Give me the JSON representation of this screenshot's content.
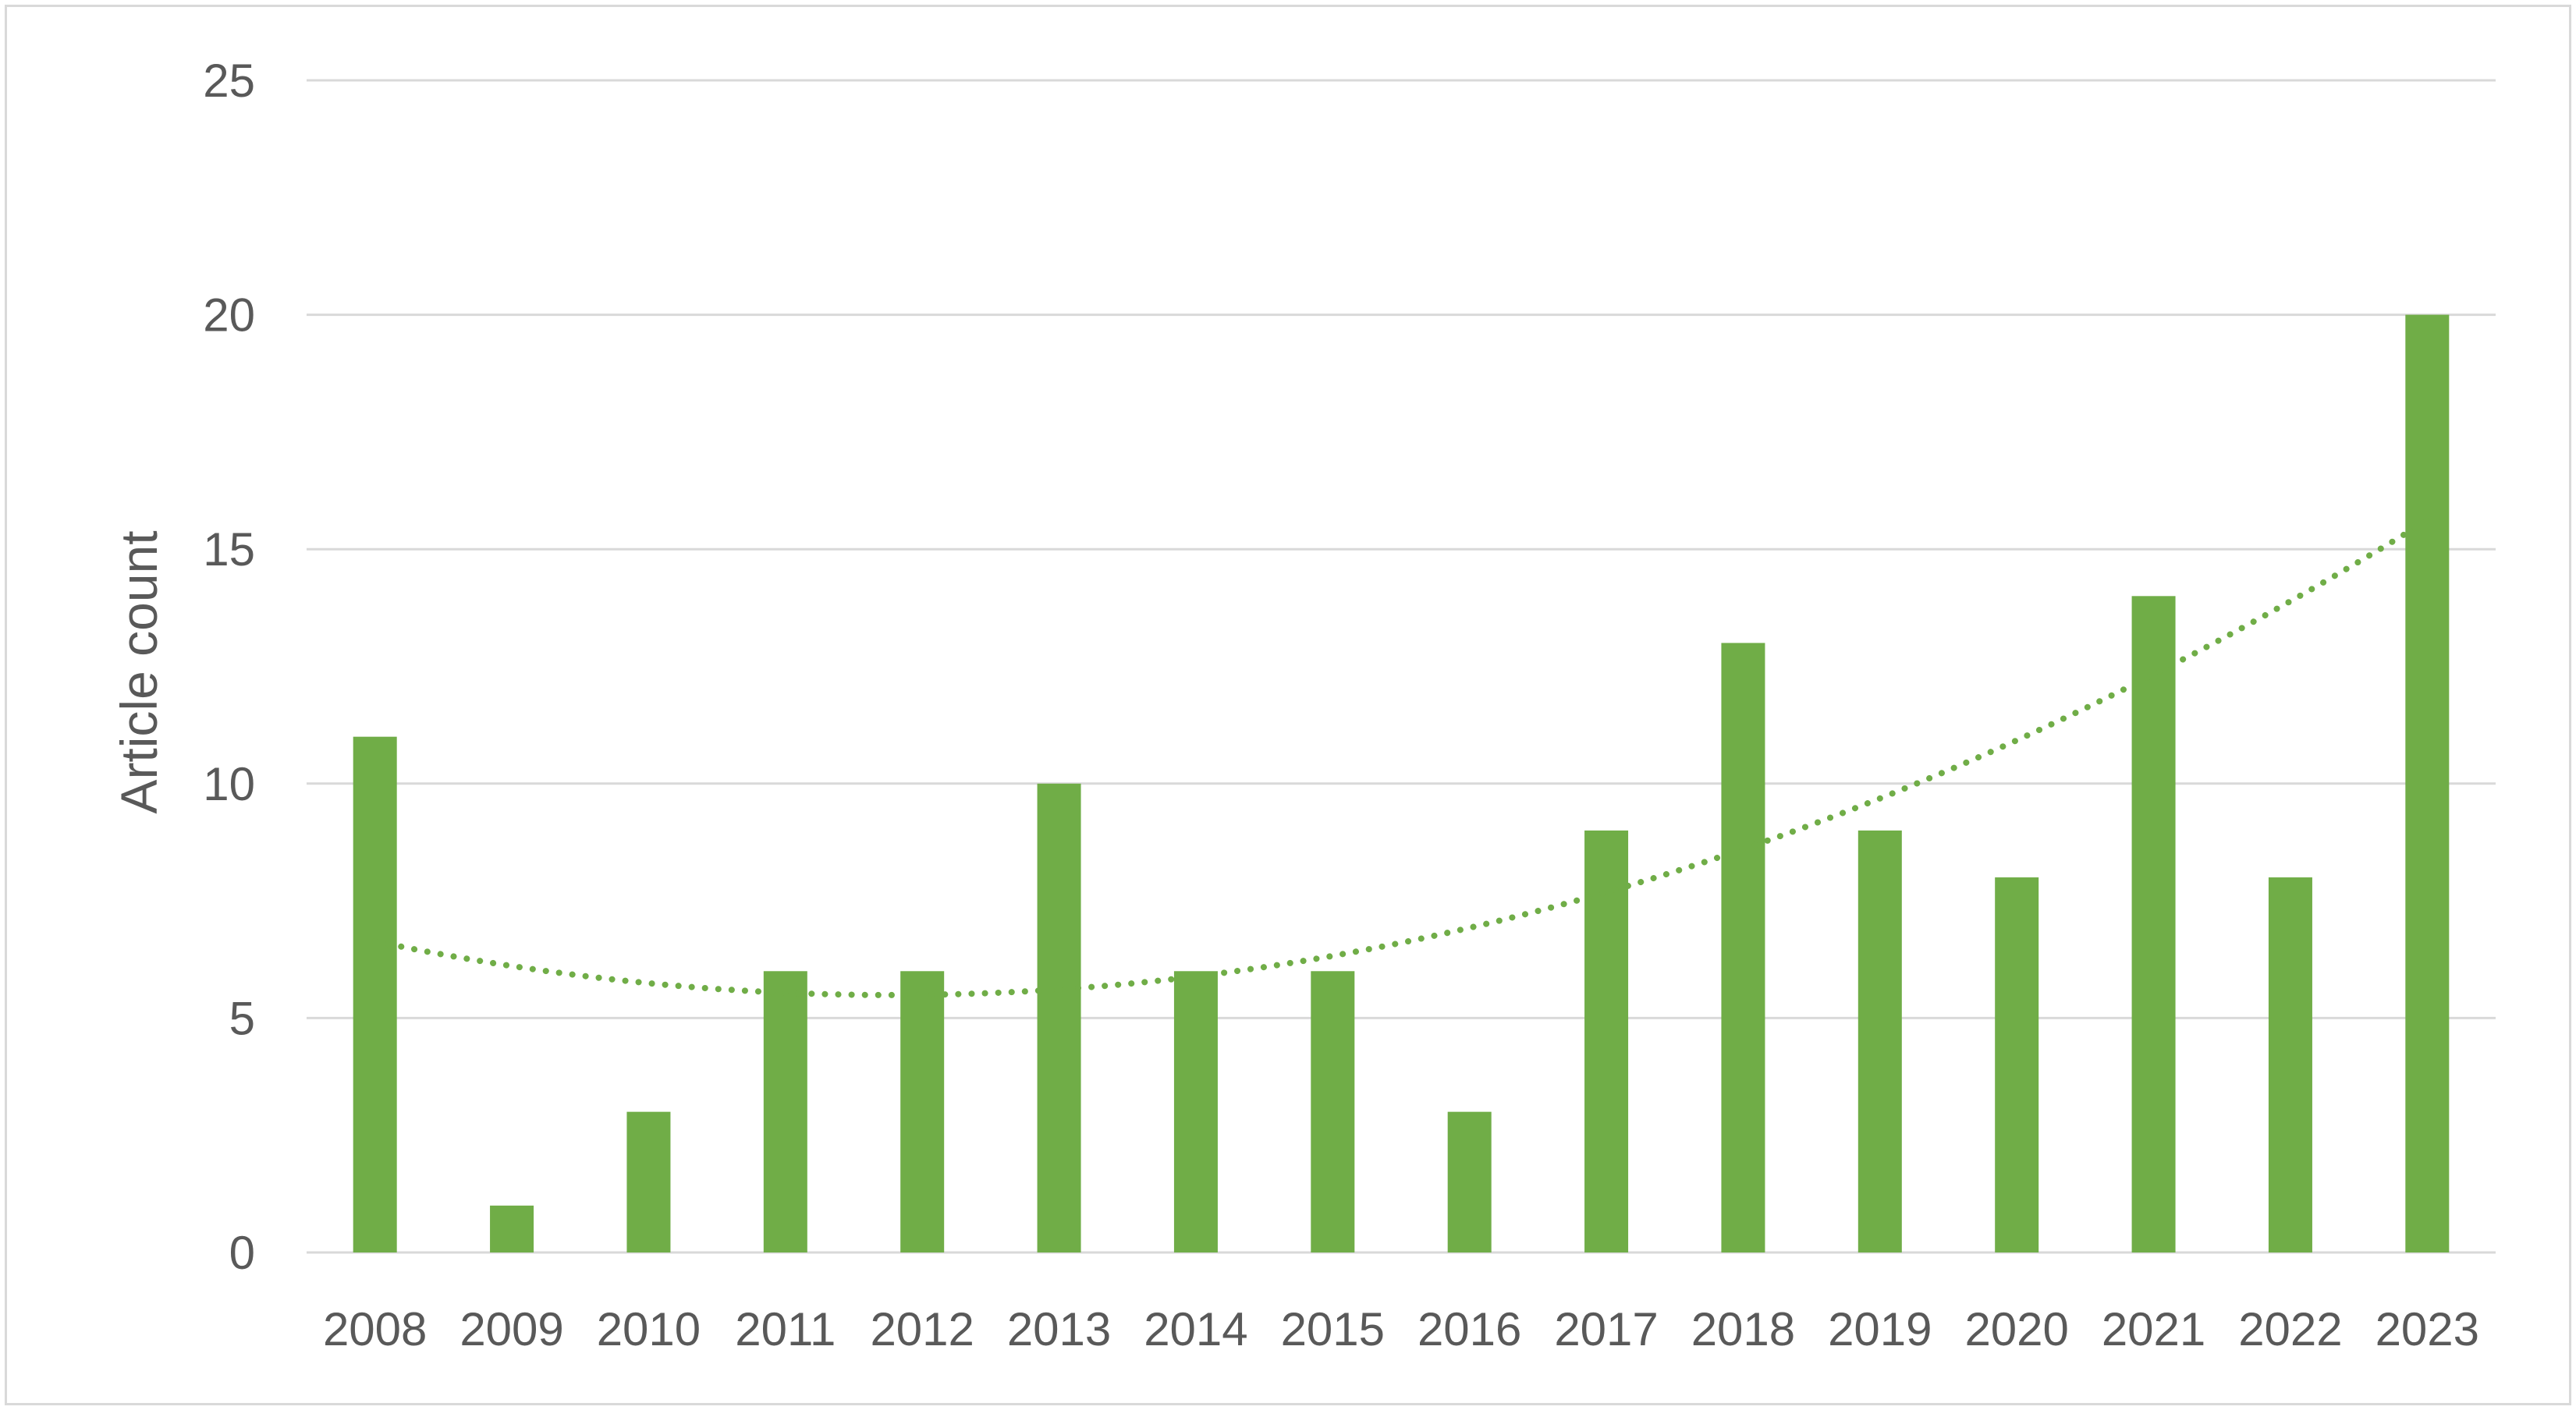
{
  "chart_data": {
    "type": "bar",
    "title": "",
    "xlabel": "",
    "ylabel": "Article count",
    "categories": [
      "2008",
      "2009",
      "2010",
      "2011",
      "2012",
      "2013",
      "2014",
      "2015",
      "2016",
      "2017",
      "2018",
      "2019",
      "2020",
      "2021",
      "2022",
      "2023"
    ],
    "values": [
      11,
      1,
      3,
      6,
      6,
      10,
      6,
      6,
      3,
      9,
      13,
      9,
      8,
      14,
      8,
      20
    ],
    "ylim": [
      0,
      25
    ],
    "yticks": [
      0,
      5,
      10,
      15,
      20,
      25
    ],
    "grid": true,
    "legend": "none",
    "trendline": {
      "type": "polynomial",
      "order": 2,
      "style": "dotted"
    },
    "colors": {
      "bar": "#70ad47",
      "trendline": "#70ad47",
      "grid": "#d9d9d9",
      "text": "#595959"
    }
  }
}
